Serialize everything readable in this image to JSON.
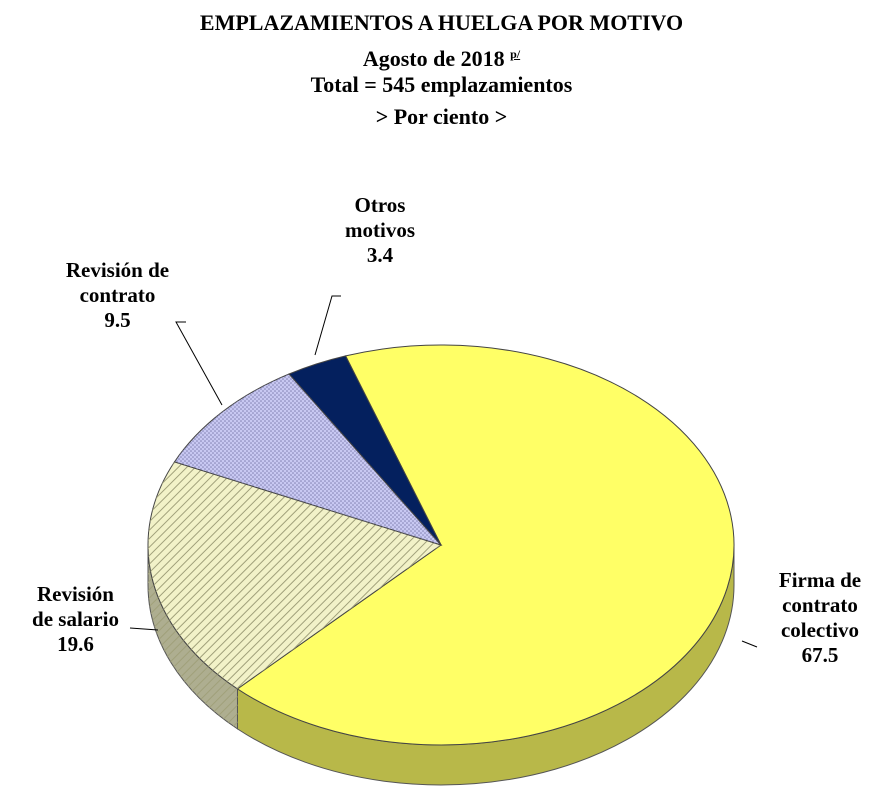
{
  "chart_data": {
    "type": "pie",
    "title": "EMPLAZAMIENTOS A HUELGA POR MOTIVO",
    "subtitle": "Agosto de 2018",
    "subtitle_note": "p/",
    "total_label": "Total = 545 emplazamientos",
    "unit_label": "> Por ciento >",
    "categories": [
      "Firma de contrato colectivo",
      "Revisión de salario",
      "Revisión de contrato",
      "Otros motivos"
    ],
    "values": [
      67.5,
      19.6,
      9.5,
      3.4
    ],
    "colors": [
      "#ffff66",
      "#f2f2c8",
      "#c8c8f2",
      "#04205e"
    ],
    "patterns": [
      "none",
      "diagonal",
      "dots",
      "none"
    ]
  }
}
